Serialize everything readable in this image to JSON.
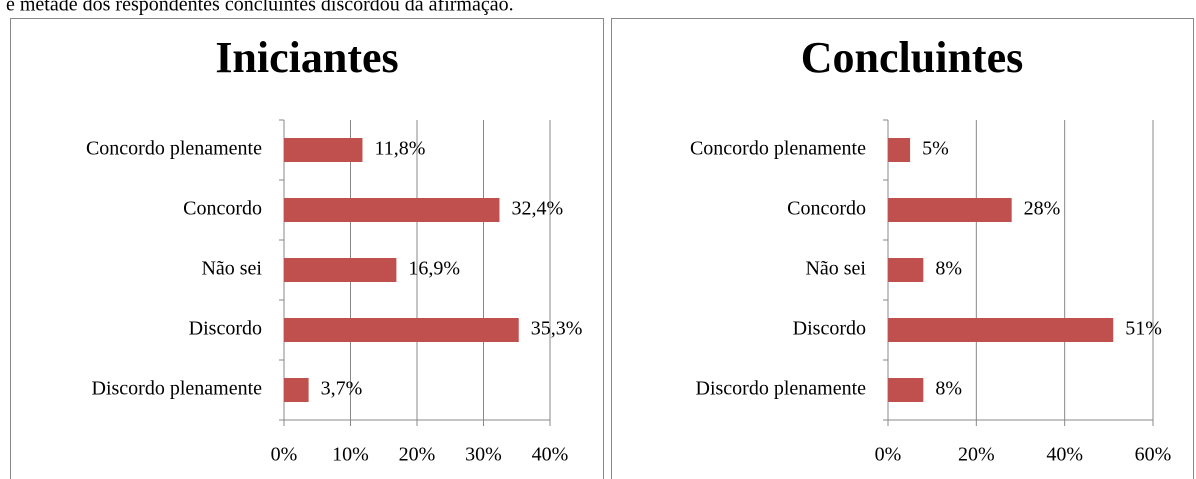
{
  "text_above": "e metade dos respondentes concluintes discordou da afirmação.",
  "chart_data": [
    {
      "type": "bar",
      "orientation": "horizontal",
      "title": "Iniciantes",
      "categories": [
        "Concordo plenamente",
        "Concordo",
        "Não sei",
        "Discordo",
        "Discordo plenamente"
      ],
      "values": [
        11.8,
        32.4,
        16.9,
        35.3,
        3.7
      ],
      "value_labels": [
        "11,8%",
        "32,4%",
        "16,9%",
        "35,3%",
        "3,7%"
      ],
      "color": "#c0504d",
      "grid": true,
      "xlim": [
        0,
        40
      ],
      "xticks": [
        {
          "value": 0,
          "label": "0%"
        },
        {
          "value": 10,
          "label": "10%"
        },
        {
          "value": 20,
          "label": "20%"
        },
        {
          "value": 30,
          "label": "30%"
        },
        {
          "value": 40,
          "label": "40%"
        }
      ]
    },
    {
      "type": "bar",
      "orientation": "horizontal",
      "title": "Concluintes",
      "categories": [
        "Concordo plenamente",
        "Concordo",
        "Não sei",
        "Discordo",
        "Discordo plenamente"
      ],
      "values": [
        5,
        28,
        8,
        51,
        8
      ],
      "value_labels": [
        "5%",
        "28%",
        "8%",
        "51%",
        "8%"
      ],
      "color": "#c0504d",
      "grid": true,
      "xlim": [
        0,
        60
      ],
      "xticks": [
        {
          "value": 0,
          "label": "0%"
        },
        {
          "value": 20,
          "label": "20%"
        },
        {
          "value": 40,
          "label": "40%"
        },
        {
          "value": 60,
          "label": "60%"
        }
      ]
    }
  ]
}
